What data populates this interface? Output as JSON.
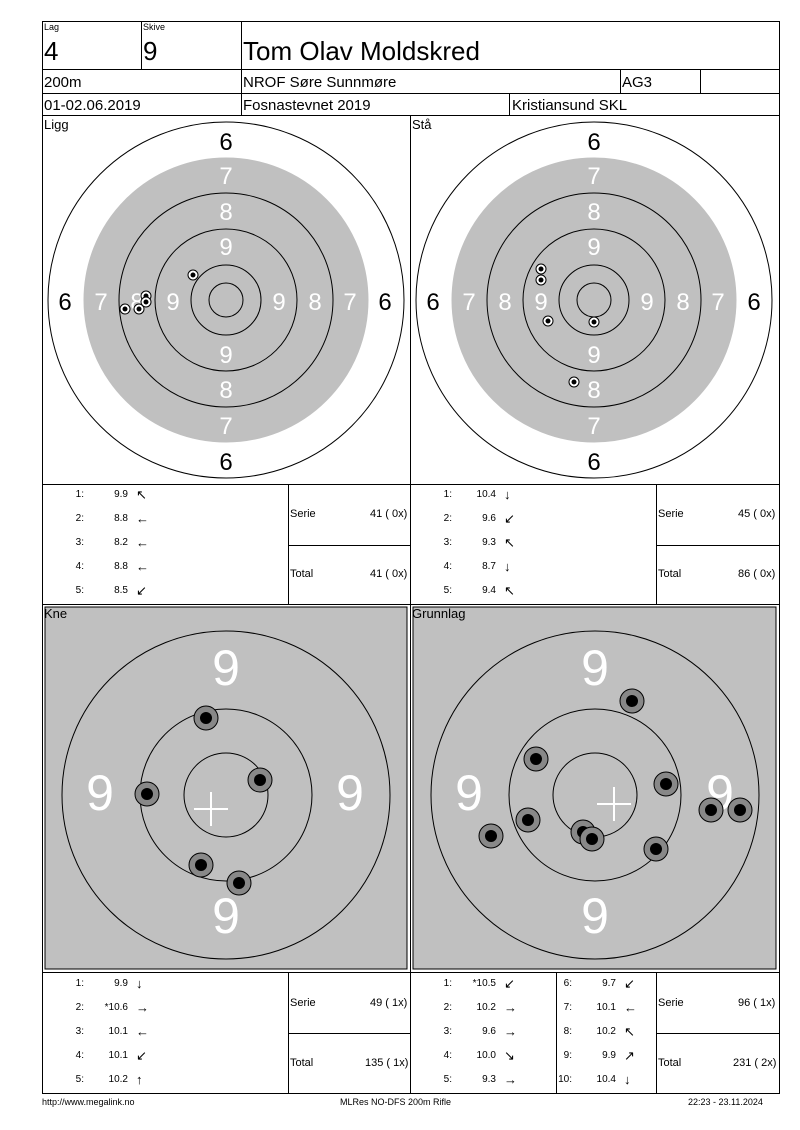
{
  "header": {
    "lag_label": "Lag",
    "lag_value": "4",
    "skive_label": "Skive",
    "skive_value": "9",
    "name": "Tom Olav Moldskred",
    "distance": "200m",
    "club": "NROF Søre Sunnmøre",
    "class": "AG3",
    "date": "01-02.06.2019",
    "event": "Fosnastevnet 2019",
    "organizer": "Kristiansund SKL"
  },
  "panels": {
    "ligg": {
      "title": "Ligg",
      "shots": [
        {
          "n": "1:",
          "v": "9.9",
          "arrow": "↖"
        },
        {
          "n": "2:",
          "v": "8.8",
          "arrow": "←"
        },
        {
          "n": "3:",
          "v": "8.2",
          "arrow": "←"
        },
        {
          "n": "4:",
          "v": "8.8",
          "arrow": "←"
        },
        {
          "n": "5:",
          "v": "8.5",
          "arrow": "↙"
        }
      ],
      "serie_label": "Serie",
      "serie_value": "41 ( 0x)",
      "total_label": "Total",
      "total_value": "41 ( 0x)"
    },
    "sta": {
      "title": "Stå",
      "shots": [
        {
          "n": "1:",
          "v": "10.4",
          "arrow": "↓"
        },
        {
          "n": "2:",
          "v": "9.6",
          "arrow": "↙"
        },
        {
          "n": "3:",
          "v": "9.3",
          "arrow": "↖"
        },
        {
          "n": "4:",
          "v": "8.7",
          "arrow": "↓"
        },
        {
          "n": "5:",
          "v": "9.4",
          "arrow": "↖"
        }
      ],
      "serie_label": "Serie",
      "serie_value": "45 ( 0x)",
      "total_label": "Total",
      "total_value": "86 ( 0x)"
    },
    "kne": {
      "title": "Kne",
      "shots": [
        {
          "n": "1:",
          "v": "9.9",
          "arrow": "↓"
        },
        {
          "n": "2:",
          "v": "*10.6",
          "arrow": "→"
        },
        {
          "n": "3:",
          "v": "10.1",
          "arrow": "←"
        },
        {
          "n": "4:",
          "v": "10.1",
          "arrow": "↙"
        },
        {
          "n": "5:",
          "v": "10.2",
          "arrow": "↑"
        }
      ],
      "serie_label": "Serie",
      "serie_value": "49 ( 1x)",
      "total_label": "Total",
      "total_value": "135 ( 1x)"
    },
    "grunnlag": {
      "title": "Grunnlag",
      "shots": [
        {
          "n": "1:",
          "v": "*10.5",
          "arrow": "↙"
        },
        {
          "n": "2:",
          "v": "10.2",
          "arrow": "→"
        },
        {
          "n": "3:",
          "v": "9.6",
          "arrow": "→"
        },
        {
          "n": "4:",
          "v": "10.0",
          "arrow": "↘"
        },
        {
          "n": "5:",
          "v": "9.3",
          "arrow": "→"
        }
      ],
      "shots_b": [
        {
          "n": "6:",
          "v": "9.7",
          "arrow": "↙"
        },
        {
          "n": "7:",
          "v": "10.1",
          "arrow": "←"
        },
        {
          "n": "8:",
          "v": "10.2",
          "arrow": "↖"
        },
        {
          "n": "9:",
          "v": "9.9",
          "arrow": "↗"
        },
        {
          "n": "10:",
          "v": "10.4",
          "arrow": "↓"
        }
      ],
      "serie_label": "Serie",
      "serie_value": "96 ( 1x)",
      "total_label": "Total",
      "total_value": "231 ( 2x)"
    }
  },
  "target_labels": {
    "full": [
      "6",
      "7",
      "8",
      "9"
    ],
    "zoom": "9"
  },
  "footer": {
    "left": "http://www.megalink.no",
    "center": "MLRes NO-DFS 200m Rifle",
    "right": "22:23 - 23.11.2024"
  }
}
